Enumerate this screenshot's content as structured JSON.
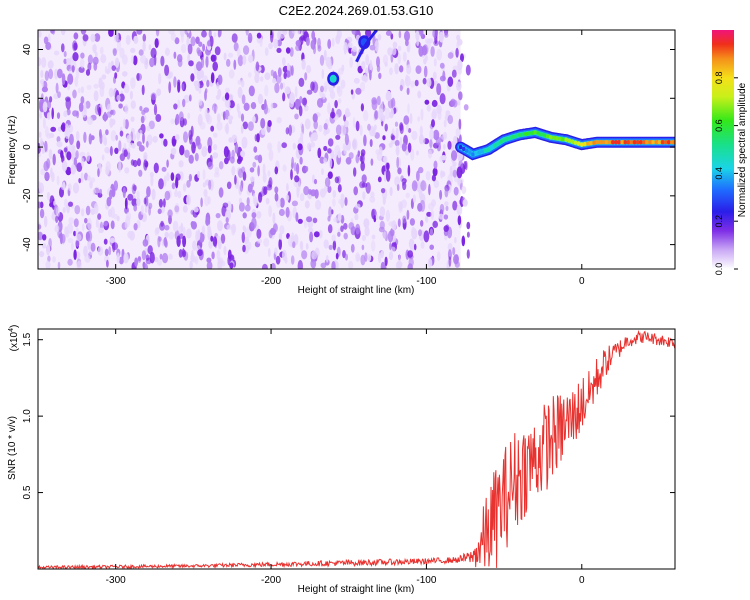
{
  "title": "C2E2.2024.269.01.53.G10",
  "chart_data": [
    {
      "type": "heatmap",
      "xlabel": "Height of straight line (km)",
      "ylabel": "Frequency (Hz)",
      "xlim": [
        -350,
        60
      ],
      "ylim": [
        -50,
        48
      ],
      "xticks": [
        -300,
        -200,
        -100,
        0
      ],
      "yticks": [
        -40,
        -20,
        0,
        20,
        40
      ],
      "colorbar": {
        "label": "Normalized spectral amplitude",
        "range": [
          0,
          1
        ],
        "ticks": [
          "0.0",
          "0.2",
          "0.4",
          "0.6",
          "0.8"
        ],
        "tick_values": [
          0.0,
          0.2,
          0.4,
          0.6,
          0.8
        ]
      },
      "noise_region_x": [
        -350,
        -78
      ],
      "ridge": {
        "x": [
          -78,
          -70,
          -60,
          -50,
          -40,
          -30,
          -20,
          -10,
          0,
          10,
          20,
          40,
          60
        ],
        "freq": [
          0,
          -3,
          -1,
          3,
          5,
          6,
          4,
          3,
          1,
          2,
          2,
          2,
          2
        ],
        "amplitude": [
          0.3,
          0.4,
          0.45,
          0.5,
          0.55,
          0.6,
          0.65,
          0.7,
          0.8,
          0.85,
          0.9,
          0.9,
          0.9
        ]
      },
      "features": [
        {
          "x": -160,
          "freq": 28,
          "amplitude": 0.45
        },
        {
          "x": -140,
          "freq": 43,
          "amplitude": 0.3
        }
      ],
      "grid": false
    },
    {
      "type": "line",
      "xlabel": "Height of straight line (km)",
      "ylabel": "SNR (10 * v/v)",
      "y_multiplier": "(x10",
      "y_multiplier_exp": "4",
      "y_multiplier_close": ")",
      "xlim": [
        -350,
        60
      ],
      "ylim": [
        0,
        1.57
      ],
      "xticks": [
        -300,
        -200,
        -100,
        0
      ],
      "yticks": [
        0.5,
        1.0,
        1.5
      ],
      "ytick_labels": [
        "0.5",
        "1.0",
        "1.5"
      ],
      "series": [
        {
          "color": "#e8322f",
          "x": [
            -350,
            -300,
            -250,
            -200,
            -150,
            -100,
            -80,
            -70,
            -65,
            -60,
            -55,
            -50,
            -45,
            -40,
            -35,
            -30,
            -25,
            -20,
            -15,
            -10,
            -5,
            0,
            5,
            10,
            15,
            20,
            25,
            30,
            40,
            50,
            60
          ],
          "y": [
            0.01,
            0.015,
            0.02,
            0.03,
            0.04,
            0.05,
            0.06,
            0.08,
            0.15,
            0.25,
            0.35,
            0.45,
            0.55,
            0.62,
            0.68,
            0.72,
            0.78,
            0.85,
            0.9,
            0.95,
            1.0,
            1.08,
            1.15,
            1.25,
            1.35,
            1.4,
            1.45,
            1.5,
            1.52,
            1.5,
            1.48
          ],
          "noise_amp": [
            0.01,
            0.01,
            0.01,
            0.015,
            0.02,
            0.02,
            0.02,
            0.05,
            0.2,
            0.3,
            0.35,
            0.35,
            0.35,
            0.35,
            0.3,
            0.3,
            0.3,
            0.3,
            0.25,
            0.25,
            0.2,
            0.2,
            0.15,
            0.15,
            0.1,
            0.08,
            0.06,
            0.05,
            0.04,
            0.04,
            0.04
          ]
        }
      ],
      "grid": false
    }
  ],
  "colors": {
    "line": "#e8322f",
    "noise_light": "#e6d6fb",
    "noise_mid": "#b07cf0",
    "noise_dark": "#7a22e0"
  }
}
